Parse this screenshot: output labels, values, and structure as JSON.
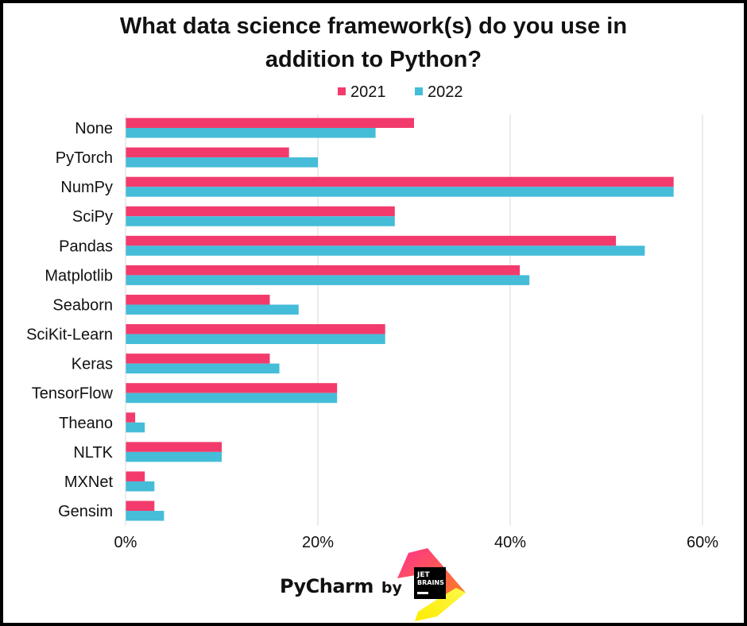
{
  "chart_data": {
    "type": "bar",
    "orientation": "horizontal",
    "title_lines": [
      "What data science framework(s) do you use in",
      "addition to Python?"
    ],
    "categories": [
      "None",
      "PyTorch",
      "NumPy",
      "SciPy",
      "Pandas",
      "Matplotlib",
      "Seaborn",
      "SciKit-Learn",
      "Keras",
      "TensorFlow",
      "Theano",
      "NLTK",
      "MXNet",
      "Gensim"
    ],
    "series": [
      {
        "name": "2021",
        "color": "#f23b6c",
        "values": [
          30,
          17,
          57,
          28,
          51,
          41,
          15,
          27,
          15,
          22,
          1,
          10,
          2,
          3
        ]
      },
      {
        "name": "2022",
        "color": "#45bcd8",
        "values": [
          26,
          20,
          57,
          28,
          54,
          42,
          18,
          27,
          16,
          22,
          2,
          10,
          3,
          4
        ]
      }
    ],
    "xlim": [
      0,
      60
    ],
    "xticks": [
      "0%",
      "20%",
      "40%",
      "60%"
    ],
    "xtick_values": [
      0,
      20,
      40,
      60
    ],
    "legend_position": "top",
    "grid": "vertical"
  },
  "footer": {
    "brand": "PyCharm",
    "by": "by",
    "logo_text_line1": "JET",
    "logo_text_line2": "BRAINS"
  }
}
